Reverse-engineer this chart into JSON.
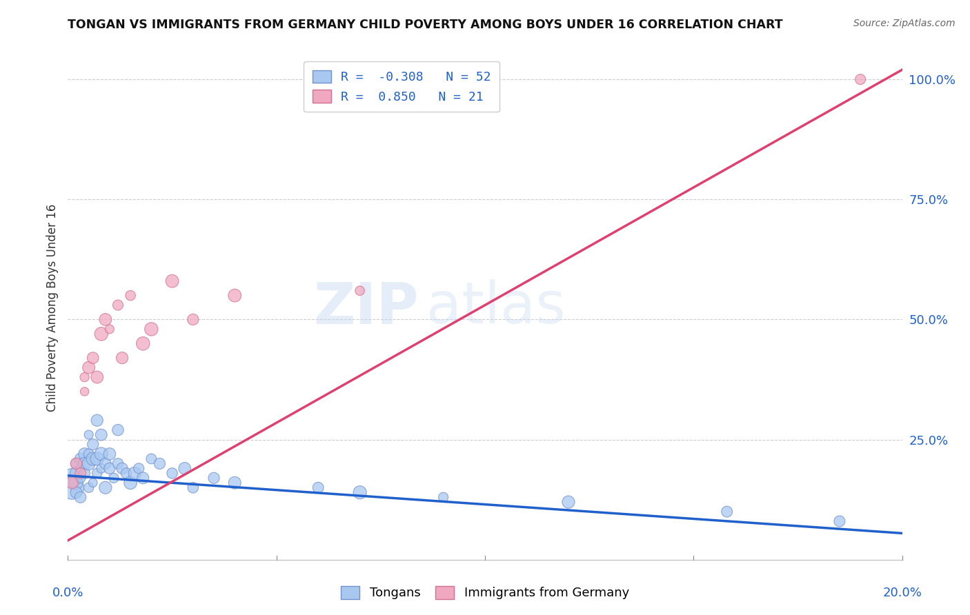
{
  "title": "TONGAN VS IMMIGRANTS FROM GERMANY CHILD POVERTY AMONG BOYS UNDER 16 CORRELATION CHART",
  "source": "Source: ZipAtlas.com",
  "ylabel": "Child Poverty Among Boys Under 16",
  "legend_label1": "Tongans",
  "legend_label2": "Immigrants from Germany",
  "R1": -0.308,
  "N1": 52,
  "R2": 0.85,
  "N2": 21,
  "color1": "#a8c8f0",
  "color2": "#f0a8c0",
  "line_color1": "#2060cc",
  "line_color2": "#e04070",
  "background_color": "#ffffff",
  "watermark_zip": "ZIP",
  "watermark_atlas": "atlas",
  "tongans_x": [
    0.001,
    0.001,
    0.002,
    0.002,
    0.002,
    0.002,
    0.003,
    0.003,
    0.003,
    0.003,
    0.004,
    0.004,
    0.004,
    0.005,
    0.005,
    0.005,
    0.005,
    0.006,
    0.006,
    0.006,
    0.007,
    0.007,
    0.007,
    0.008,
    0.008,
    0.008,
    0.009,
    0.009,
    0.01,
    0.01,
    0.011,
    0.012,
    0.012,
    0.013,
    0.014,
    0.015,
    0.016,
    0.017,
    0.018,
    0.02,
    0.022,
    0.025,
    0.028,
    0.03,
    0.035,
    0.04,
    0.06,
    0.07,
    0.09,
    0.12,
    0.158,
    0.185
  ],
  "tongans_y": [
    0.15,
    0.17,
    0.2,
    0.18,
    0.16,
    0.14,
    0.21,
    0.19,
    0.17,
    0.13,
    0.22,
    0.2,
    0.18,
    0.26,
    0.22,
    0.2,
    0.15,
    0.24,
    0.21,
    0.16,
    0.29,
    0.21,
    0.18,
    0.26,
    0.22,
    0.19,
    0.2,
    0.15,
    0.22,
    0.19,
    0.17,
    0.27,
    0.2,
    0.19,
    0.18,
    0.16,
    0.18,
    0.19,
    0.17,
    0.21,
    0.2,
    0.18,
    0.19,
    0.15,
    0.17,
    0.16,
    0.15,
    0.14,
    0.13,
    0.12,
    0.1,
    0.08
  ],
  "germany_x": [
    0.001,
    0.002,
    0.003,
    0.004,
    0.004,
    0.005,
    0.006,
    0.007,
    0.008,
    0.009,
    0.01,
    0.012,
    0.013,
    0.015,
    0.018,
    0.02,
    0.025,
    0.03,
    0.04,
    0.07,
    0.19
  ],
  "germany_y": [
    0.16,
    0.2,
    0.18,
    0.35,
    0.38,
    0.4,
    0.42,
    0.38,
    0.47,
    0.5,
    0.48,
    0.53,
    0.42,
    0.55,
    0.45,
    0.48,
    0.58,
    0.5,
    0.55,
    0.56,
    1.0
  ],
  "xlim": [
    0.0,
    0.2
  ],
  "ylim": [
    0.0,
    1.05
  ],
  "right_yticks": [
    0.0,
    0.25,
    0.5,
    0.75,
    1.0
  ],
  "right_yticklabels": [
    "",
    "25.0%",
    "50.0%",
    "75.0%",
    "100.0%"
  ],
  "xtick_positions": [
    0.0,
    0.05,
    0.1,
    0.15,
    0.2
  ],
  "bubble_size": 120
}
